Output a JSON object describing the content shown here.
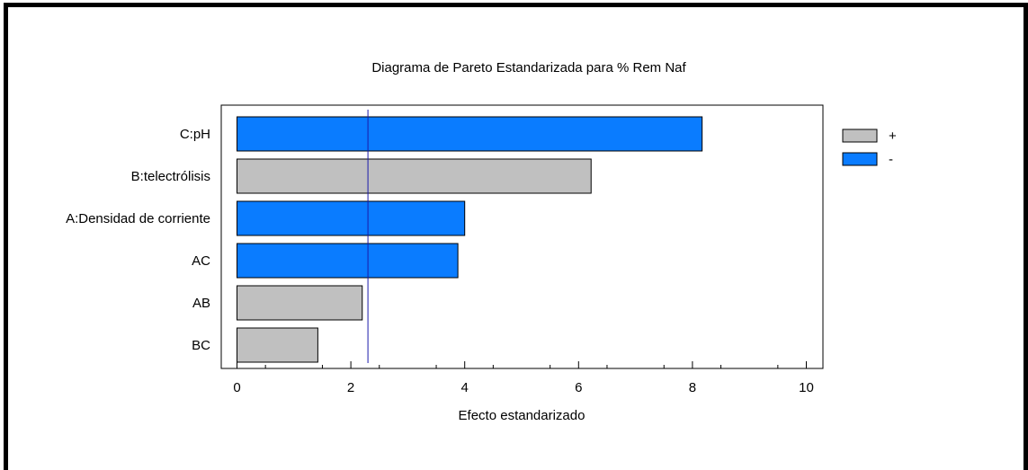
{
  "chart_data": {
    "type": "bar",
    "orientation": "horizontal",
    "title": "Diagrama de Pareto Estandarizada para % Rem Naf",
    "xlabel": "Efecto estandarizado",
    "ylabel": "",
    "xlim": [
      0,
      10
    ],
    "x_ticks": [
      "0",
      "2",
      "4",
      "6",
      "8",
      "10"
    ],
    "categories": [
      "C:pH",
      "B:telectrólisis",
      "A:Densidad de corriente",
      "AC",
      "AB",
      "BC"
    ],
    "values": [
      8.17,
      6.22,
      4.0,
      3.88,
      2.2,
      1.42
    ],
    "signs": [
      "-",
      "+",
      "-",
      "-",
      "+",
      "+"
    ],
    "reference_line": 2.3,
    "legend": [
      {
        "label": "+",
        "color": "#c0c0c0"
      },
      {
        "label": "-",
        "color": "#0a7cff"
      }
    ],
    "legend_position": "right",
    "colors": {
      "positive": "#c0c0c0",
      "negative": "#0a7cff",
      "reference_line": "#1a1aaa"
    },
    "grid": false
  }
}
